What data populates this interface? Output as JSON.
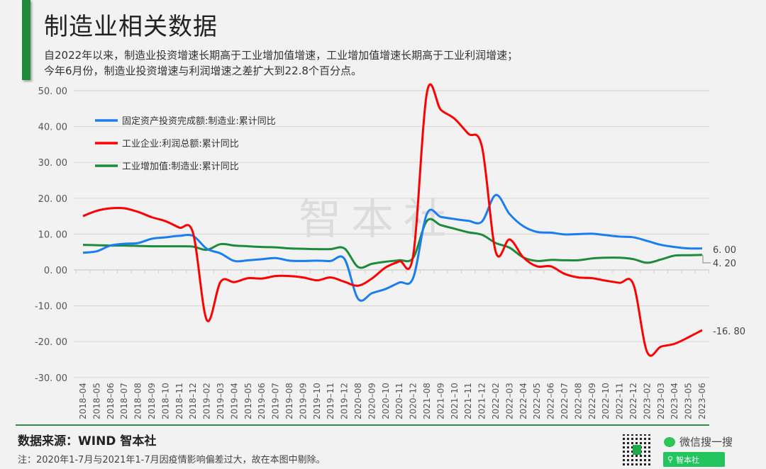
{
  "header": {
    "title": "制造业相关数据",
    "subtitle_lines": [
      "自2022年以来，制造业投资增速长期高于工业增加值增速，工业增加值增速长期高于工业利润增速；",
      "今年6月份，制造业投资增速与利润增速之差扩大到22.8个百分点。"
    ]
  },
  "watermark": "智本社",
  "footer": {
    "source": "数据来源：WIND  智本社",
    "note": "注：2020年1-7月与2021年1-7月因疫情影响偏差过大，故在本图中剔除。",
    "wechat_label": "微信搜一搜",
    "wechat_search": "智本社"
  },
  "colors": {
    "blue": "#1a7ef0",
    "red": "#ff0000",
    "green": "#1e8a3c",
    "accent": "#1e8a3c"
  },
  "chart_data": {
    "type": "line",
    "title": "制造业相关数据",
    "xlabel": "",
    "ylabel": "",
    "ylim": [
      -30,
      50
    ],
    "yticks": [
      "50.00",
      "40.00",
      "30.00",
      "20.00",
      "10.00",
      "0.00",
      "-10.00",
      "-20.00",
      "-30.00"
    ],
    "grid": true,
    "legend_position": "upper-left",
    "categories": [
      "2018-04",
      "2018-05",
      "2018-06",
      "2018-07",
      "2018-08",
      "2018-09",
      "2018-10",
      "2018-11",
      "2018-12",
      "2019-02",
      "2019-03",
      "2019-04",
      "2019-05",
      "2019-06",
      "2019-07",
      "2019-08",
      "2019-09",
      "2019-10",
      "2019-11",
      "2019-12",
      "2020-08",
      "2020-09",
      "2020-10",
      "2020-11",
      "2020-12",
      "2021-08",
      "2021-09",
      "2021-10",
      "2021-11",
      "2021-12",
      "2022-02",
      "2022-03",
      "2022-04",
      "2022-05",
      "2022-06",
      "2022-07",
      "2022-08",
      "2022-09",
      "2022-10",
      "2022-11",
      "2022-12",
      "2023-02",
      "2023-03",
      "2023-04",
      "2023-05",
      "2023-06"
    ],
    "series": [
      {
        "name": "固定资产投资完成额:制造业:累计同比",
        "color": "#1a7ef0",
        "values": [
          4.8,
          5.2,
          6.8,
          7.3,
          7.5,
          8.7,
          9.1,
          9.5,
          9.5,
          5.9,
          4.6,
          2.5,
          2.7,
          3.0,
          3.3,
          2.6,
          2.5,
          2.6,
          2.5,
          3.1,
          -8.1,
          -6.5,
          -5.3,
          -3.5,
          -2.2,
          15.7,
          14.8,
          14.2,
          13.7,
          13.5,
          20.9,
          15.6,
          12.2,
          10.6,
          10.4,
          9.9,
          10.0,
          10.1,
          9.7,
          9.3,
          9.1,
          8.1,
          7.0,
          6.4,
          6.0,
          6.0
        ]
      },
      {
        "name": "工业企业:利润总额:累计同比",
        "color": "#ff0000",
        "values": [
          15.0,
          16.5,
          17.2,
          17.2,
          16.2,
          14.7,
          13.6,
          11.8,
          10.3,
          -14.0,
          -3.3,
          -3.4,
          -2.3,
          -2.4,
          -1.7,
          -1.7,
          -2.1,
          -2.9,
          -2.1,
          -3.3,
          -4.4,
          -2.4,
          0.7,
          2.4,
          4.1,
          49.5,
          44.7,
          42.2,
          38.0,
          34.3,
          5.0,
          8.5,
          3.5,
          1.0,
          1.0,
          -1.1,
          -2.1,
          -2.3,
          -3.0,
          -3.6,
          -4.0,
          -22.9,
          -21.4,
          -20.6,
          -18.8,
          -16.8
        ]
      },
      {
        "name": "工业增加值:制造业:累计同比",
        "color": "#1e8a3c",
        "values": [
          7.0,
          6.9,
          6.8,
          6.8,
          6.7,
          6.6,
          6.6,
          6.6,
          6.5,
          5.6,
          7.2,
          6.8,
          6.6,
          6.4,
          6.3,
          6.0,
          5.9,
          5.8,
          5.8,
          6.0,
          0.8,
          1.7,
          2.3,
          2.7,
          3.4,
          13.7,
          12.5,
          11.5,
          10.5,
          9.8,
          7.5,
          6.2,
          3.5,
          2.5,
          2.8,
          2.7,
          2.7,
          3.2,
          3.4,
          3.4,
          3.0,
          2.0,
          2.9,
          4.0,
          4.1,
          4.2
        ]
      }
    ],
    "end_labels": [
      {
        "series": 0,
        "text": "6.00"
      },
      {
        "series": 2,
        "text": "4.20"
      },
      {
        "series": 1,
        "text": "-16.80"
      }
    ]
  }
}
